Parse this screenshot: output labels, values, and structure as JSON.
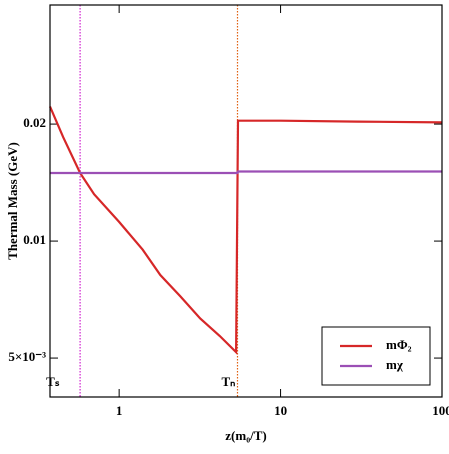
{
  "chart_data": {
    "type": "line",
    "xlabel": "z(m₀/T)",
    "ylabel": "Thermal Mass (GeV)",
    "xscale": "log",
    "yscale": "log",
    "xlim": [
      0.373,
      100
    ],
    "ylim": [
      0.00397,
      0.0405
    ],
    "xticks": [
      1,
      10,
      100
    ],
    "yticks": [
      {
        "value": 0.005,
        "label": "5×10⁻³"
      },
      0.01,
      0.02
    ],
    "legend": "lower right",
    "series": [
      {
        "name": "mΦ₂",
        "color": "#d62728",
        "x": [
          0.373,
          0.45,
          0.573,
          0.7,
          1,
          1.4,
          1.8,
          2.4,
          3.18,
          4.2,
          5.3,
          5.45,
          10,
          30,
          100
        ],
        "values": [
          0.0222,
          0.0185,
          0.01497,
          0.0132,
          0.0112,
          0.0095,
          0.00818,
          0.0072,
          0.00632,
          0.0057,
          0.00518,
          0.0204,
          0.0204,
          0.0203,
          0.0202
        ]
      },
      {
        "name": "mχ",
        "color": "#9b4fb5",
        "x": [
          0.373,
          5.4,
          5.45,
          100
        ],
        "values": [
          0.01497,
          0.01497,
          0.0151,
          0.0151
        ]
      }
    ],
    "vlines": [
      {
        "x": 0.573,
        "label": "Tₛ",
        "color": "#d020d0"
      },
      {
        "x": 5.41,
        "label": "Tₙ",
        "color": "#e06010"
      }
    ]
  }
}
